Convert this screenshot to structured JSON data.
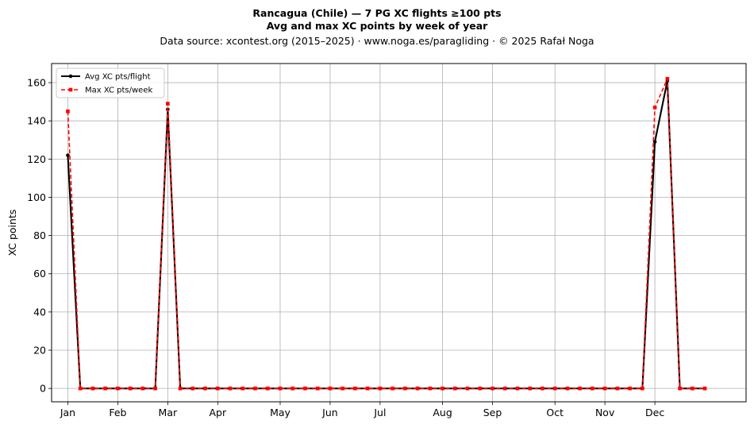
{
  "chart_data": {
    "type": "line",
    "title_line1": "Rancagua (Chile)  —  7 PG XC flights ≥100 pts",
    "title_line2": "Avg and max XC points by week of year",
    "subtitle": "Data source: xcontest.org (2015–2025)  ·  www.noga.es/paragliding  ·  © 2025 Rafał Noga",
    "ylabel": "XC points",
    "xlabel": "",
    "ylim": [
      -7,
      170
    ],
    "xlim": [
      -1.3,
      54.3
    ],
    "y_ticks": [
      0,
      20,
      40,
      60,
      80,
      100,
      120,
      140,
      160
    ],
    "x_ticks": [
      {
        "week": 0,
        "label": "Jan"
      },
      {
        "week": 4,
        "label": "Feb"
      },
      {
        "week": 8,
        "label": "Mar"
      },
      {
        "week": 12,
        "label": "Apr"
      },
      {
        "week": 17,
        "label": "May"
      },
      {
        "week": 21,
        "label": "Jun"
      },
      {
        "week": 25,
        "label": "Jul"
      },
      {
        "week": 30,
        "label": "Aug"
      },
      {
        "week": 34,
        "label": "Sep"
      },
      {
        "week": 39,
        "label": "Oct"
      },
      {
        "week": 43,
        "label": "Nov"
      },
      {
        "week": 47,
        "label": "Dec"
      }
    ],
    "grid": true,
    "legend_position": "top-left",
    "x": [
      0,
      1,
      2,
      3,
      4,
      5,
      6,
      7,
      8,
      9,
      10,
      11,
      12,
      13,
      14,
      15,
      16,
      17,
      18,
      19,
      20,
      21,
      22,
      23,
      24,
      25,
      26,
      27,
      28,
      29,
      30,
      31,
      32,
      33,
      34,
      35,
      36,
      37,
      38,
      39,
      40,
      41,
      42,
      43,
      44,
      45,
      46,
      47,
      48,
      49,
      50,
      51
    ],
    "series": [
      {
        "name": "Avg XC pts/flight",
        "color": "#000000",
        "style": "solid",
        "values": [
          122,
          0,
          0,
          0,
          0,
          0,
          0,
          0,
          146,
          0,
          0,
          0,
          0,
          0,
          0,
          0,
          0,
          0,
          0,
          0,
          0,
          0,
          0,
          0,
          0,
          0,
          0,
          0,
          0,
          0,
          0,
          0,
          0,
          0,
          0,
          0,
          0,
          0,
          0,
          0,
          0,
          0,
          0,
          0,
          0,
          0,
          0,
          129,
          161,
          0,
          0,
          0
        ]
      },
      {
        "name": "Max XC pts/week",
        "color": "#ff0000",
        "style": "dashed",
        "values": [
          145,
          0,
          0,
          0,
          0,
          0,
          0,
          0,
          149,
          0,
          0,
          0,
          0,
          0,
          0,
          0,
          0,
          0,
          0,
          0,
          0,
          0,
          0,
          0,
          0,
          0,
          0,
          0,
          0,
          0,
          0,
          0,
          0,
          0,
          0,
          0,
          0,
          0,
          0,
          0,
          0,
          0,
          0,
          0,
          0,
          0,
          0,
          147,
          162,
          0,
          0,
          0
        ]
      }
    ]
  }
}
